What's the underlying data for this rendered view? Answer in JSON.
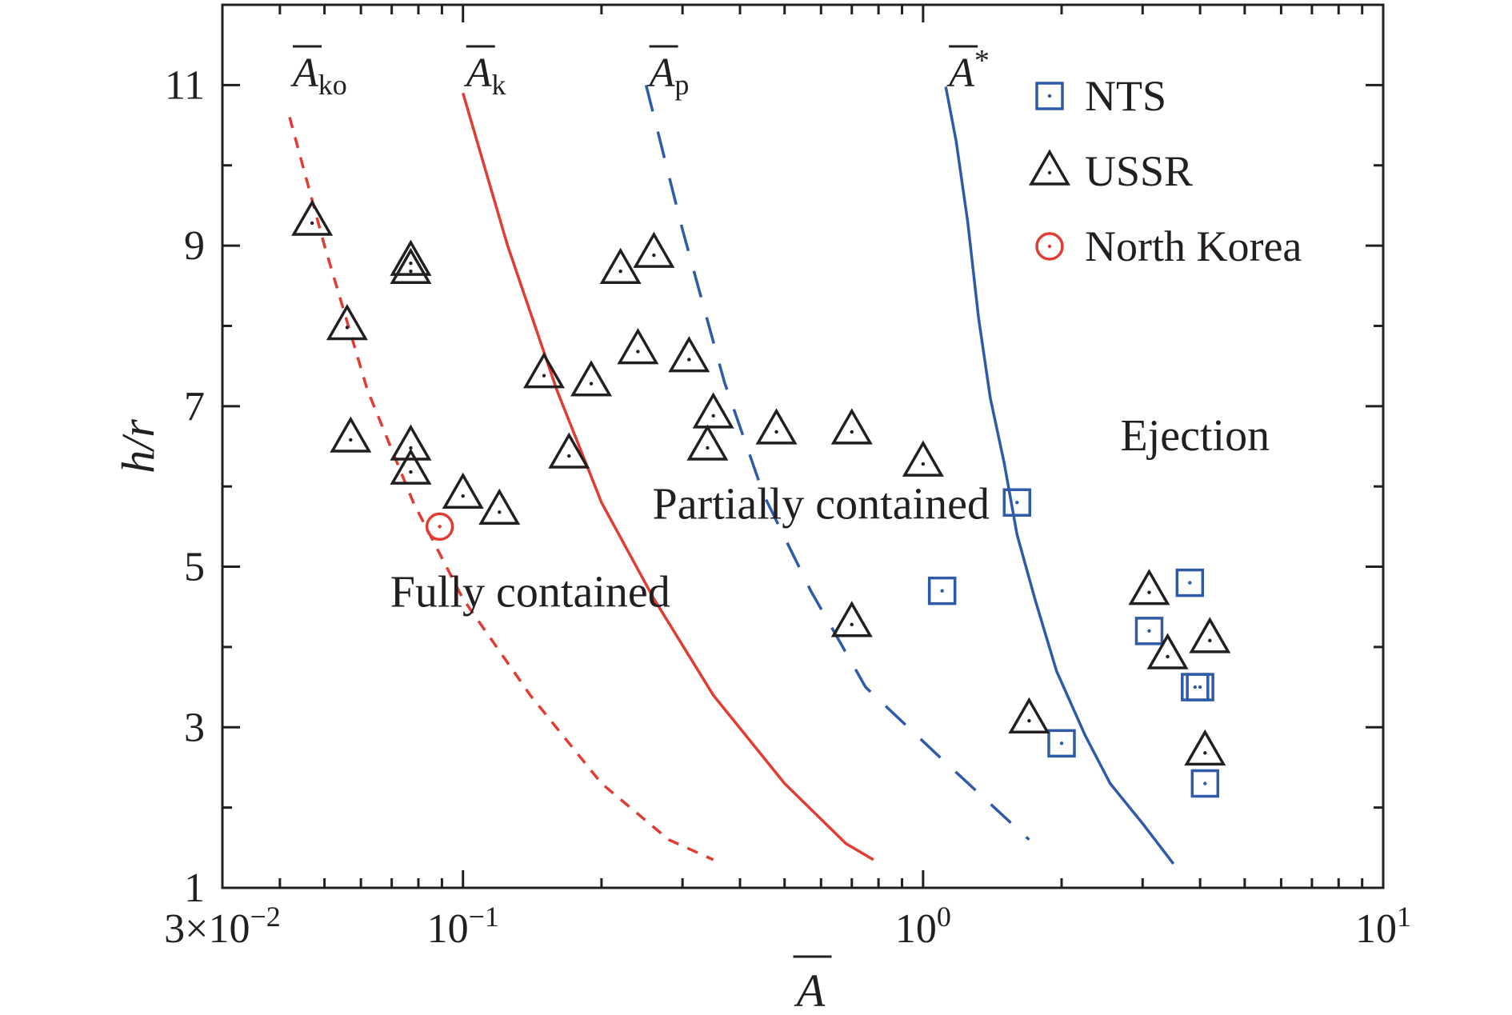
{
  "chart_data": {
    "type": "scatter",
    "xscale": "log",
    "xlim": [
      0.03,
      10
    ],
    "ylim": [
      1,
      12
    ],
    "xticks": [
      {
        "value": 0.03,
        "label": "3×10",
        "sup": "−2"
      },
      {
        "value": 0.1,
        "label": "10",
        "sup": "−1"
      },
      {
        "value": 1,
        "label": "10",
        "sup": "0"
      },
      {
        "value": 10,
        "label": "10",
        "sup": "1"
      }
    ],
    "yticks": [
      1,
      3,
      5,
      7,
      9,
      11
    ],
    "xlabel": "A",
    "ylabel": "h/r",
    "legend_position": "top-right",
    "series": [
      {
        "name": "NTS",
        "marker": "square",
        "color": "#2e5aa8",
        "points": [
          [
            1.6,
            5.8
          ],
          [
            1.1,
            4.7
          ],
          [
            3.1,
            4.2
          ],
          [
            3.8,
            4.8
          ],
          [
            3.9,
            3.5
          ],
          [
            4.0,
            3.5
          ],
          [
            2.0,
            2.8
          ],
          [
            4.1,
            2.3
          ]
        ]
      },
      {
        "name": "USSR",
        "marker": "triangle",
        "color": "#231f20",
        "points": [
          [
            0.047,
            9.3
          ],
          [
            0.056,
            8.0
          ],
          [
            0.077,
            8.7
          ],
          [
            0.077,
            8.8
          ],
          [
            0.057,
            6.6
          ],
          [
            0.077,
            6.5
          ],
          [
            0.077,
            6.2
          ],
          [
            0.1,
            5.9
          ],
          [
            0.12,
            5.7
          ],
          [
            0.15,
            7.4
          ],
          [
            0.19,
            7.3
          ],
          [
            0.17,
            6.4
          ],
          [
            0.22,
            8.7
          ],
          [
            0.26,
            8.9
          ],
          [
            0.24,
            7.7
          ],
          [
            0.31,
            7.6
          ],
          [
            0.35,
            6.9
          ],
          [
            0.34,
            6.5
          ],
          [
            0.48,
            6.7
          ],
          [
            0.7,
            6.7
          ],
          [
            1.0,
            6.3
          ],
          [
            0.7,
            4.3
          ],
          [
            1.7,
            3.1
          ],
          [
            3.1,
            4.7
          ],
          [
            3.4,
            3.9
          ],
          [
            4.2,
            4.1
          ],
          [
            4.1,
            2.7
          ]
        ]
      },
      {
        "name": "North Korea",
        "marker": "circle",
        "color": "#e03c31",
        "points": [
          [
            0.089,
            5.5
          ]
        ]
      }
    ],
    "curves": [
      {
        "name": "A",
        "sub": "ko",
        "color": "#e03c31",
        "style": "dotted",
        "points": [
          [
            0.042,
            10.6
          ],
          [
            0.05,
            9.0
          ],
          [
            0.062,
            7.2
          ],
          [
            0.078,
            5.8
          ],
          [
            0.1,
            4.6
          ],
          [
            0.14,
            3.4
          ],
          [
            0.2,
            2.3
          ],
          [
            0.28,
            1.6
          ],
          [
            0.35,
            1.35
          ]
        ]
      },
      {
        "name": "A",
        "sub": "k",
        "color": "#e03c31",
        "style": "solid",
        "points": [
          [
            0.1,
            10.9
          ],
          [
            0.125,
            9.0
          ],
          [
            0.16,
            7.2
          ],
          [
            0.2,
            5.8
          ],
          [
            0.26,
            4.6
          ],
          [
            0.35,
            3.4
          ],
          [
            0.5,
            2.3
          ],
          [
            0.68,
            1.55
          ],
          [
            0.78,
            1.35
          ]
        ]
      },
      {
        "name": "A",
        "sub": "p",
        "color": "#2e5aa8",
        "style": "dashed",
        "points": [
          [
            0.25,
            11.0
          ],
          [
            0.3,
            9.2
          ],
          [
            0.37,
            7.3
          ],
          [
            0.45,
            5.9
          ],
          [
            0.57,
            4.7
          ],
          [
            0.75,
            3.5
          ],
          [
            1.1,
            2.6
          ],
          [
            1.7,
            1.6
          ]
        ]
      },
      {
        "name": "A",
        "sub": "*",
        "color": "#2e5aa8",
        "style": "solid",
        "points": [
          [
            1.12,
            10.98
          ],
          [
            1.18,
            10.3
          ],
          [
            1.25,
            9.3
          ],
          [
            1.32,
            8.1
          ],
          [
            1.4,
            7.1
          ],
          [
            1.5,
            6.3
          ],
          [
            1.6,
            5.4
          ],
          [
            1.75,
            4.6
          ],
          [
            1.95,
            3.7
          ],
          [
            2.25,
            2.9
          ],
          [
            2.55,
            2.3
          ],
          [
            3.0,
            1.8
          ],
          [
            3.5,
            1.3
          ]
        ]
      }
    ],
    "region_labels": [
      {
        "text": "Fully contained",
        "x": 0.14,
        "y": 4.5
      },
      {
        "text": "Partially contained",
        "x": 0.6,
        "y": 5.6
      },
      {
        "text": "Ejection",
        "x": 3.9,
        "y": 6.45
      }
    ]
  }
}
